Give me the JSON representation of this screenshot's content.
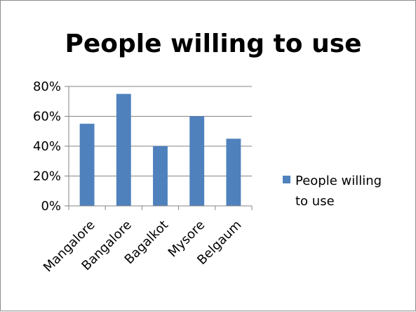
{
  "chart_data": {
    "type": "bar",
    "title": "People willing to use",
    "xlabel": "",
    "ylabel": "",
    "categories": [
      "Mangalore",
      "Bangalore",
      "Bagalkot",
      "Mysore",
      "Belgaum"
    ],
    "series": [
      {
        "name": "People willing to use",
        "values": [
          0.55,
          0.75,
          0.4,
          0.6,
          0.45
        ],
        "color": "#4f81bd"
      }
    ],
    "ylim": [
      0,
      0.8
    ],
    "y_ticks": [
      0,
      0.2,
      0.4,
      0.6,
      0.8
    ],
    "y_tick_labels": [
      "0%",
      "20%",
      "40%",
      "60%",
      "80%"
    ],
    "grid": true,
    "legend_position": "right",
    "legend_lines": [
      "People willing",
      "to use"
    ]
  }
}
